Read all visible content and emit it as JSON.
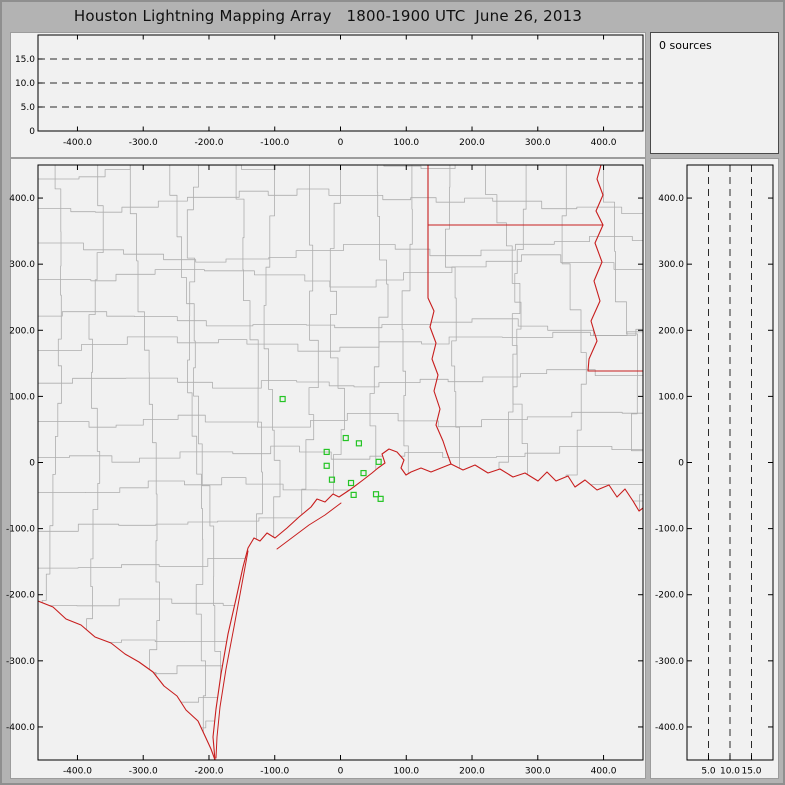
{
  "title": "Houston Lightning Mapping Array   1800-1900 UTC  June 26, 2013",
  "sources_panel": {
    "label": "0 sources"
  },
  "colors": {
    "frame_bg": "#b3b3b3",
    "panel_bg": "#f1f1f1",
    "plot_border": "#000000",
    "county_line": "#aeaeae",
    "state_border": "#c81e1e",
    "station_marker": "#25c425",
    "dashed_line": "#2a2a2a",
    "tick_text": "#000000"
  },
  "chart_data": [
    {
      "id": "altitude_ew",
      "name": "altitude-vs-east-west-distance",
      "type": "scatter",
      "x_range": [
        -460,
        460
      ],
      "y_range": [
        0,
        20
      ],
      "x_tick_values": [
        -400,
        -300,
        -200,
        -100,
        0,
        100,
        200,
        300,
        400
      ],
      "x_tick_labels": [
        "-400.0",
        "-300.0",
        "-200.0",
        "-100.0",
        "0",
        "100.0",
        "200.0",
        "300.0",
        "400.0"
      ],
      "y_tick_values": [
        15,
        10,
        5,
        0
      ],
      "y_tick_labels": [
        "15.0",
        "10.0",
        "5.0",
        "0"
      ],
      "dashed_y_values": [
        5,
        10,
        15
      ],
      "points": []
    },
    {
      "id": "plan_view",
      "name": "plan-view-map",
      "type": "scatter",
      "x_range": [
        -460,
        460
      ],
      "y_range": [
        -450,
        450
      ],
      "x_tick_values": [
        -400,
        -300,
        -200,
        -100,
        0,
        100,
        200,
        300,
        400
      ],
      "x_tick_labels": [
        "-400.0",
        "-300.0",
        "-200.0",
        "-100.0",
        "0",
        "100.0",
        "200.0",
        "300.0",
        "400.0"
      ],
      "y_tick_values": [
        400,
        300,
        200,
        100,
        0,
        -100,
        -200,
        -300,
        -400
      ],
      "y_tick_labels": [
        "400.0",
        "300.0",
        "200.0",
        "100.0",
        "0",
        "-100.0",
        "-200.0",
        "-300.0",
        "-400.0"
      ],
      "map_layers": [
        "county-boundaries",
        "state-borders",
        "coastline"
      ],
      "station_marker": "open-green-square",
      "stations": [
        {
          "x": -88,
          "y": 96
        },
        {
          "x": 8,
          "y": 37
        },
        {
          "x": 28,
          "y": 29
        },
        {
          "x": -21,
          "y": 16
        },
        {
          "x": -21,
          "y": -5
        },
        {
          "x": -13,
          "y": -26
        },
        {
          "x": 16,
          "y": -31
        },
        {
          "x": 35,
          "y": -16
        },
        {
          "x": 58,
          "y": 1
        },
        {
          "x": 20,
          "y": -49
        },
        {
          "x": 54,
          "y": -48
        },
        {
          "x": 61,
          "y": -55
        }
      ],
      "points": []
    },
    {
      "id": "altitude_ns",
      "name": "north-south-distance-vs-altitude",
      "type": "scatter",
      "x_range": [
        0,
        20
      ],
      "y_range": [
        -450,
        450
      ],
      "x_tick_values": [
        5,
        10,
        15
      ],
      "x_tick_labels": [
        "5.0",
        "10.0",
        "15.0"
      ],
      "y_tick_values": [
        400,
        300,
        200,
        100,
        0,
        -100,
        -200,
        -300,
        -400
      ],
      "y_tick_labels": [
        "400.0",
        "300.0",
        "200.0",
        "100.0",
        "0",
        "-100.0",
        "-200.0",
        "-300.0",
        "-400.0"
      ],
      "dashed_x_values": [
        5,
        10,
        15
      ],
      "points": []
    }
  ]
}
